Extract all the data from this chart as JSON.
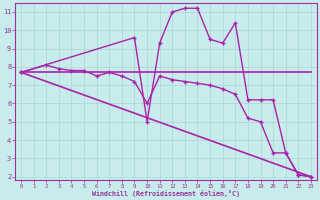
{
  "background_color": "#c8ecec",
  "grid_color": "#b0d8d8",
  "line_color": "#aa22aa",
  "xlim": [
    -0.5,
    23.5
  ],
  "ylim": [
    1.8,
    11.5
  ],
  "xlabel": "Windchill (Refroidissement éolien,°C)",
  "yticks": [
    2,
    3,
    4,
    5,
    6,
    7,
    8,
    9,
    10,
    11
  ],
  "xticks": [
    0,
    1,
    2,
    3,
    4,
    5,
    6,
    7,
    8,
    9,
    10,
    11,
    12,
    13,
    14,
    15,
    16,
    17,
    18,
    19,
    20,
    21,
    22,
    23
  ],
  "series": [
    {
      "x": [
        0,
        23
      ],
      "y": [
        7.7,
        7.7
      ],
      "marker": null,
      "linewidth": 1.2
    },
    {
      "x": [
        0,
        23
      ],
      "y": [
        7.7,
        2.0
      ],
      "marker": null,
      "linewidth": 1.2
    },
    {
      "x": [
        0,
        2,
        3,
        4,
        5,
        6,
        7,
        8,
        9,
        10,
        11,
        12,
        13,
        14,
        15,
        16,
        17,
        18,
        19,
        20,
        21,
        22,
        23
      ],
      "y": [
        7.7,
        8.1,
        7.9,
        7.8,
        7.8,
        7.5,
        7.7,
        7.5,
        7.2,
        6.0,
        7.5,
        7.3,
        7.2,
        7.1,
        7.0,
        6.8,
        6.5,
        5.2,
        5.0,
        3.3,
        3.3,
        2.1,
        2.0
      ],
      "marker": "+",
      "linewidth": 1.0
    },
    {
      "x": [
        0,
        9,
        10,
        11,
        12,
        13,
        14,
        15,
        16,
        17,
        18,
        19,
        20,
        21,
        22,
        23
      ],
      "y": [
        7.7,
        9.6,
        5.0,
        9.3,
        11.0,
        11.2,
        11.2,
        9.5,
        9.3,
        10.4,
        6.2,
        6.2,
        6.2,
        3.3,
        2.1,
        2.0
      ],
      "marker": "+",
      "linewidth": 1.0
    }
  ]
}
